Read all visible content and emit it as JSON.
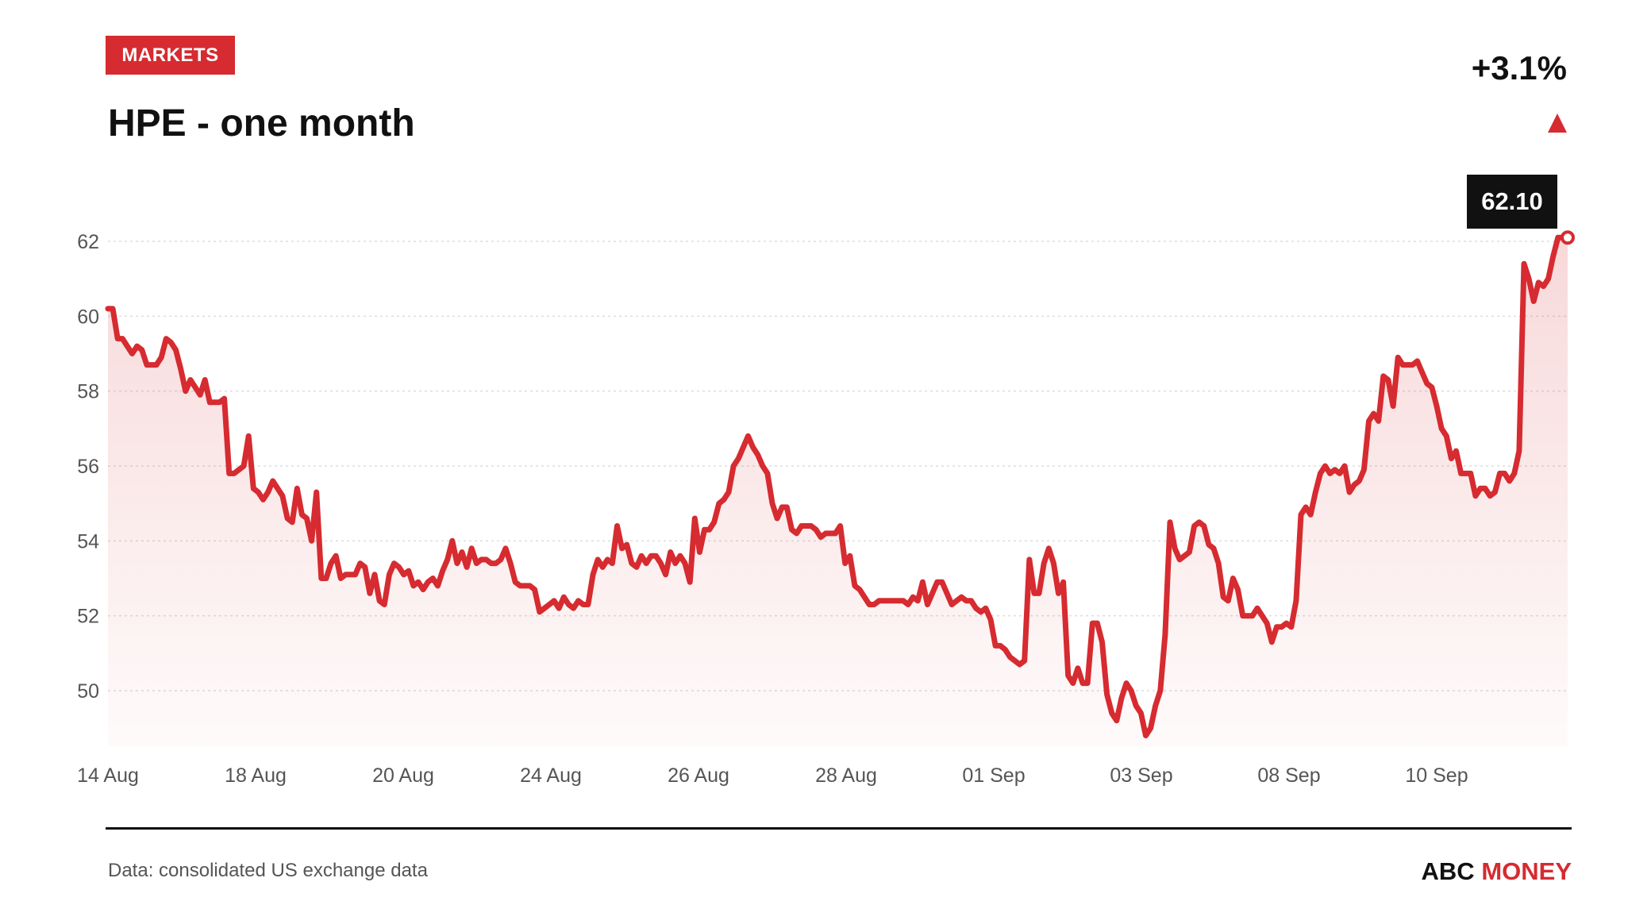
{
  "header": {
    "badge": "MARKETS",
    "title": "HPE - one month",
    "change": "+3.1%",
    "direction": "up"
  },
  "footer": {
    "source": "Data: consolidated US exchange data",
    "brand_part1": "ABC",
    "brand_part2": "MONEY"
  },
  "colors": {
    "accent": "#d62b30",
    "text": "#111111",
    "muted": "#555555",
    "grid": "#dddddd",
    "tooltip_bg": "#111111"
  },
  "chart_data": {
    "type": "area",
    "title": "HPE - one month",
    "xlabel": "",
    "ylabel": "",
    "ylim": [
      48.5,
      62.2
    ],
    "yticks": [
      50,
      52,
      54,
      56,
      58,
      60,
      62
    ],
    "x_tick_labels": [
      "14 Aug",
      "18 Aug",
      "20 Aug",
      "24 Aug",
      "26 Aug",
      "28 Aug",
      "01 Sep",
      "03 Sep",
      "08 Sep",
      "10 Sep"
    ],
    "grid": true,
    "last_value_label": "62.10",
    "series": [
      {
        "values": [
          60.2,
          60.2,
          59.4,
          59.4,
          59.2,
          59.0,
          59.2,
          59.1,
          58.7,
          58.7,
          58.7,
          58.9,
          59.4,
          59.3,
          59.1,
          58.6,
          58.0,
          58.3,
          58.1,
          57.9,
          58.3,
          57.7,
          57.7,
          57.7,
          57.8,
          55.8,
          55.8,
          55.9,
          56.0,
          56.8,
          55.4,
          55.3,
          55.1,
          55.3,
          55.6,
          55.4,
          55.2,
          54.6,
          54.5,
          55.4,
          54.7,
          54.6,
          54.0,
          55.3,
          53.0,
          53.0,
          53.4,
          53.6,
          53.0,
          53.1,
          53.1,
          53.1,
          53.4,
          53.3,
          52.6,
          53.1,
          52.4,
          52.3,
          53.1,
          53.4,
          53.3,
          53.1,
          53.2,
          52.8,
          52.9,
          52.7,
          52.9,
          53.0,
          52.8,
          53.2,
          53.5,
          54.0,
          53.4,
          53.7,
          53.3,
          53.8,
          53.4,
          53.5,
          53.5,
          53.4,
          53.4,
          53.5,
          53.8,
          53.4,
          52.9,
          52.8,
          52.8,
          52.8,
          52.7,
          52.1,
          52.2,
          52.3,
          52.4,
          52.2,
          52.5,
          52.3,
          52.2,
          52.4,
          52.3,
          52.3,
          53.1,
          53.5,
          53.3,
          53.5,
          53.4,
          54.4,
          53.8,
          53.9,
          53.4,
          53.3,
          53.6,
          53.4,
          53.6,
          53.6,
          53.4,
          53.1,
          53.7,
          53.4,
          53.6,
          53.4,
          52.9,
          54.6,
          53.7,
          54.3,
          54.3,
          54.5,
          55.0,
          55.1,
          55.3,
          56.0,
          56.2,
          56.5,
          56.8,
          56.5,
          56.3,
          56.0,
          55.8,
          55.0,
          54.6,
          54.9,
          54.9,
          54.3,
          54.2,
          54.4,
          54.4,
          54.4,
          54.3,
          54.1,
          54.2,
          54.2,
          54.2,
          54.4,
          53.4,
          53.6,
          52.8,
          52.7,
          52.5,
          52.3,
          52.3,
          52.4,
          52.4,
          52.4,
          52.4,
          52.4,
          52.4,
          52.3,
          52.5,
          52.4,
          52.9,
          52.3,
          52.6,
          52.9,
          52.9,
          52.6,
          52.3,
          52.4,
          52.5,
          52.4,
          52.4,
          52.2,
          52.1,
          52.2,
          51.9,
          51.2,
          51.2,
          51.1,
          50.9,
          50.8,
          50.7,
          50.8,
          53.5,
          52.6,
          52.6,
          53.4,
          53.8,
          53.4,
          52.6,
          52.9,
          50.4,
          50.2,
          50.6,
          50.2,
          50.2,
          51.8,
          51.8,
          51.3,
          49.9,
          49.4,
          49.2,
          49.8,
          50.2,
          50.0,
          49.6,
          49.4,
          48.8,
          49.0,
          49.6,
          50.0,
          51.5,
          54.5,
          53.8,
          53.5,
          53.6,
          53.7,
          54.4,
          54.5,
          54.4,
          53.9,
          53.8,
          53.4,
          52.5,
          52.4,
          53.0,
          52.7,
          52.0,
          52.0,
          52.0,
          52.2,
          52.0,
          51.8,
          51.3,
          51.7,
          51.7,
          51.8,
          51.7,
          52.4,
          54.7,
          54.9,
          54.7,
          55.3,
          55.8,
          56.0,
          55.8,
          55.9,
          55.8,
          56.0,
          55.3,
          55.5,
          55.6,
          55.9,
          57.2,
          57.4,
          57.2,
          58.4,
          58.3,
          57.6,
          58.9,
          58.7,
          58.7,
          58.7,
          58.8,
          58.5,
          58.2,
          58.1,
          57.6,
          57.0,
          56.8,
          56.2,
          56.4,
          55.8,
          55.8,
          55.8,
          55.2,
          55.4,
          55.4,
          55.2,
          55.3,
          55.8,
          55.8,
          55.6,
          55.8,
          56.4,
          61.4,
          61.0,
          60.4,
          60.9,
          60.8,
          61.0,
          61.6,
          62.1,
          62.1,
          62.1
        ]
      }
    ]
  }
}
